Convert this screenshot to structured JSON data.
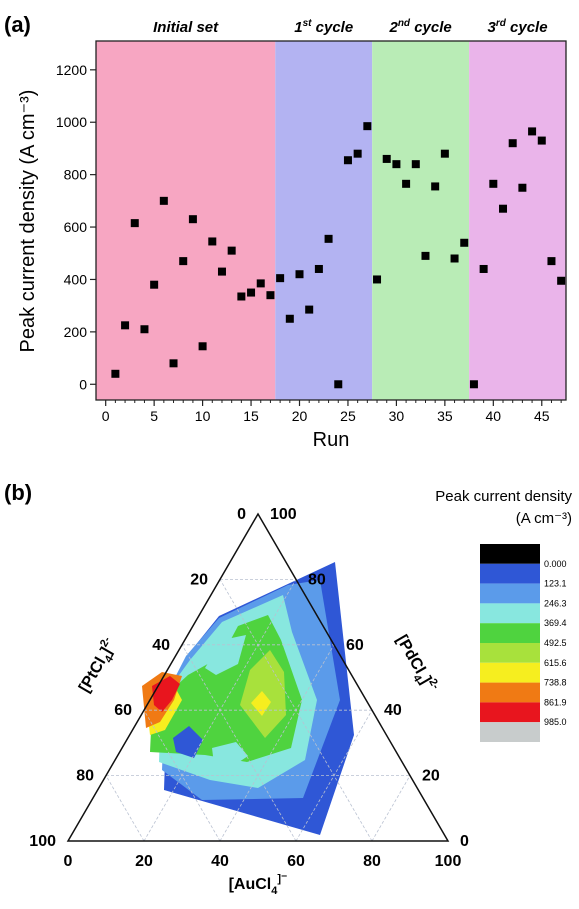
{
  "chart_data": [
    {
      "panel": "(a)",
      "type": "scatter",
      "xlabel": "Run",
      "ylabel": "Peak current density (A cm⁻³)",
      "xlim": [
        -1,
        47.5
      ],
      "ylim": [
        -60,
        1310
      ],
      "xticks": [
        0,
        5,
        10,
        15,
        20,
        25,
        30,
        35,
        40,
        45
      ],
      "yticks": [
        0,
        200,
        400,
        600,
        800,
        1000,
        1200
      ],
      "marker": "filled-square",
      "grid": false,
      "regions": [
        {
          "label_main": "Initial set",
          "label_sup": "",
          "label_rest": "",
          "x_start": -1,
          "x_end": 17.5,
          "color": "#f7a6c2"
        },
        {
          "label_main": "1",
          "label_sup": "st",
          "label_rest": " cycle",
          "x_start": 17.5,
          "x_end": 27.5,
          "color": "#b3b3f2"
        },
        {
          "label_main": "2",
          "label_sup": "nd",
          "label_rest": " cycle",
          "x_start": 27.5,
          "x_end": 37.5,
          "color": "#b9ecb6"
        },
        {
          "label_main": "3",
          "label_sup": "rd",
          "label_rest": " cycle",
          "x_start": 37.5,
          "x_end": 47.5,
          "color": "#eab4ea"
        }
      ],
      "x": [
        1,
        2,
        3,
        4,
        5,
        6,
        7,
        8,
        9,
        10,
        11,
        12,
        13,
        14,
        15,
        16,
        17,
        18,
        19,
        20,
        21,
        22,
        23,
        24,
        25,
        26,
        27,
        28,
        29,
        30,
        31,
        32,
        33,
        34,
        35,
        36,
        37,
        38,
        39,
        40,
        41,
        42,
        43,
        44,
        45,
        46,
        47
      ],
      "y": [
        40,
        225,
        615,
        210,
        380,
        700,
        80,
        470,
        630,
        145,
        545,
        430,
        510,
        335,
        350,
        385,
        340,
        405,
        250,
        420,
        285,
        440,
        555,
        0,
        855,
        880,
        985,
        400,
        860,
        840,
        765,
        840,
        490,
        755,
        880,
        480,
        540,
        0,
        440,
        765,
        670,
        920,
        750,
        965,
        930,
        470,
        395
      ]
    },
    {
      "panel": "(b)",
      "type": "heatmap",
      "subtype": "ternary-contour",
      "axes": {
        "bottom": "[AuCl4]⁻",
        "left": "[PtCl4]²⁻",
        "right": "[PdCl4]²⁻"
      },
      "ticks": [
        0,
        20,
        40,
        60,
        80,
        100
      ],
      "colorbar_title": "Peak current density",
      "colorbar_unit": "(A cm⁻³)",
      "colorbar_levels": [
        "0.000",
        "123.1",
        "246.3",
        "369.4",
        "492.5",
        "615.6",
        "738.8",
        "861.9",
        "985.0"
      ],
      "colorbar_colors": [
        "#000000",
        "#2f57d6",
        "#5b9bea",
        "#88e7df",
        "#4fd33f",
        "#a8e13c",
        "#f6ee1f",
        "#f07a14",
        "#e8151e",
        "#c8cccc"
      ],
      "regions_levels": {
        "hull": 2,
        "cyan": 3,
        "green": 4,
        "lightgreen": 5,
        "yellow": 6,
        "orange": 7,
        "red": 8
      }
    }
  ]
}
